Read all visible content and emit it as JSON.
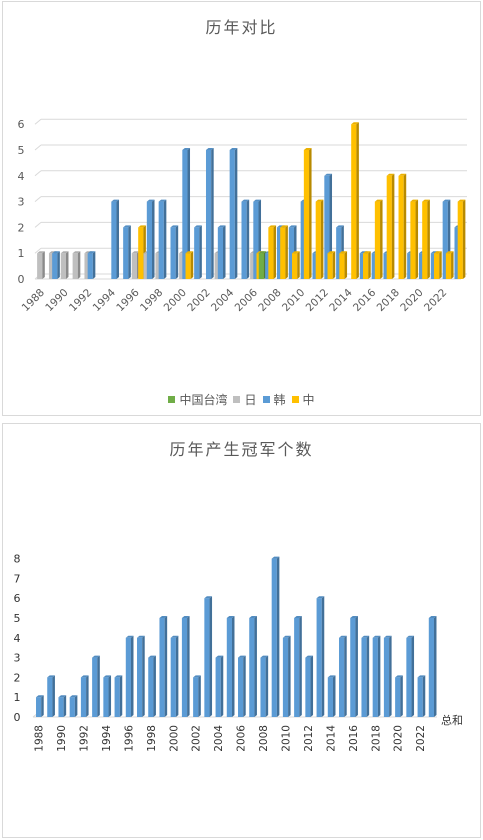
{
  "chart_data": [
    {
      "type": "bar",
      "title": "历年对比",
      "x": [
        1988,
        1989,
        1990,
        1991,
        1992,
        1993,
        1994,
        1995,
        1996,
        1997,
        1998,
        1999,
        2000,
        2001,
        2002,
        2003,
        2004,
        2005,
        2006,
        2007,
        2008,
        2009,
        2010,
        2011,
        2012,
        2013,
        2014,
        2015,
        2016,
        2017,
        2018,
        2019,
        2020,
        2021,
        2022,
        2023
      ],
      "tick_labels": [
        "1988",
        "1990",
        "1992",
        "1994",
        "1996",
        "1998",
        "2000",
        "2002",
        "2004",
        "2006",
        "2008",
        "2010",
        "2012",
        "2014",
        "2016",
        "2018",
        "2020",
        "2022"
      ],
      "ylim": [
        0,
        6
      ],
      "y_ticks": [
        0,
        1,
        2,
        3,
        4,
        5,
        6
      ],
      "grid": true,
      "legend_position": "bottom",
      "series": [
        {
          "name": "中国台湾",
          "color": "#70ad47",
          "values": [
            0,
            0,
            0,
            0,
            0,
            0,
            0,
            0,
            0,
            0,
            0,
            0,
            0,
            0,
            0,
            0,
            0,
            0,
            0,
            1,
            0,
            0,
            0,
            0,
            0,
            0,
            0,
            0,
            0,
            0,
            0,
            0,
            0,
            0,
            0,
            0
          ]
        },
        {
          "name": "日",
          "color": "#bfbfbf",
          "values": [
            1,
            1,
            1,
            1,
            1,
            0,
            0,
            0,
            1,
            1,
            1,
            0,
            1,
            0,
            0,
            1,
            0,
            0,
            1,
            0,
            0,
            0,
            0,
            0,
            0,
            0,
            0,
            0,
            0,
            0,
            0,
            0,
            0,
            0,
            0,
            0
          ]
        },
        {
          "name": "韩",
          "color": "#5b9bd5",
          "values": [
            0,
            1,
            0,
            0,
            1,
            0,
            3,
            2,
            0,
            3,
            3,
            2,
            5,
            2,
            5,
            2,
            5,
            3,
            3,
            1,
            2,
            2,
            3,
            1,
            4,
            2,
            0,
            1,
            1,
            1,
            0,
            1,
            1,
            1,
            3,
            2
          ]
        },
        {
          "name": "中",
          "color": "#ffc000",
          "values": [
            0,
            0,
            0,
            0,
            0,
            0,
            0,
            0,
            2,
            0,
            0,
            0,
            1,
            0,
            0,
            0,
            0,
            0,
            1,
            2,
            2,
            1,
            5,
            3,
            1,
            1,
            6,
            1,
            3,
            4,
            4,
            3,
            3,
            1,
            1,
            3
          ]
        }
      ]
    },
    {
      "type": "bar",
      "title": "历年产生冠军个数",
      "x": [
        1988,
        1989,
        1990,
        1991,
        1992,
        1993,
        1994,
        1995,
        1996,
        1997,
        1998,
        1999,
        2000,
        2001,
        2002,
        2003,
        2004,
        2005,
        2006,
        2007,
        2008,
        2009,
        2010,
        2011,
        2012,
        2013,
        2014,
        2015,
        2016,
        2017,
        2018,
        2019,
        2020,
        2021,
        2022,
        2023
      ],
      "tick_labels": [
        "1988",
        "1990",
        "1992",
        "1994",
        "1996",
        "1998",
        "2000",
        "2002",
        "2004",
        "2006",
        "2008",
        "2010",
        "2012",
        "2014",
        "2016",
        "2018",
        "2020",
        "2022"
      ],
      "ylim": [
        0,
        8
      ],
      "y_ticks": [
        0,
        1,
        2,
        3,
        4,
        5,
        6,
        7,
        8
      ],
      "grid": false,
      "series": [
        {
          "name": "总和",
          "color": "#5b9bd5",
          "values": [
            1,
            2,
            1,
            1,
            2,
            3,
            2,
            2,
            4,
            4,
            3,
            5,
            4,
            5,
            2,
            6,
            3,
            5,
            3,
            5,
            3,
            8,
            4,
            5,
            3,
            6,
            2,
            4,
            5,
            4,
            4,
            4,
            2,
            4,
            2,
            5
          ]
        }
      ]
    }
  ]
}
